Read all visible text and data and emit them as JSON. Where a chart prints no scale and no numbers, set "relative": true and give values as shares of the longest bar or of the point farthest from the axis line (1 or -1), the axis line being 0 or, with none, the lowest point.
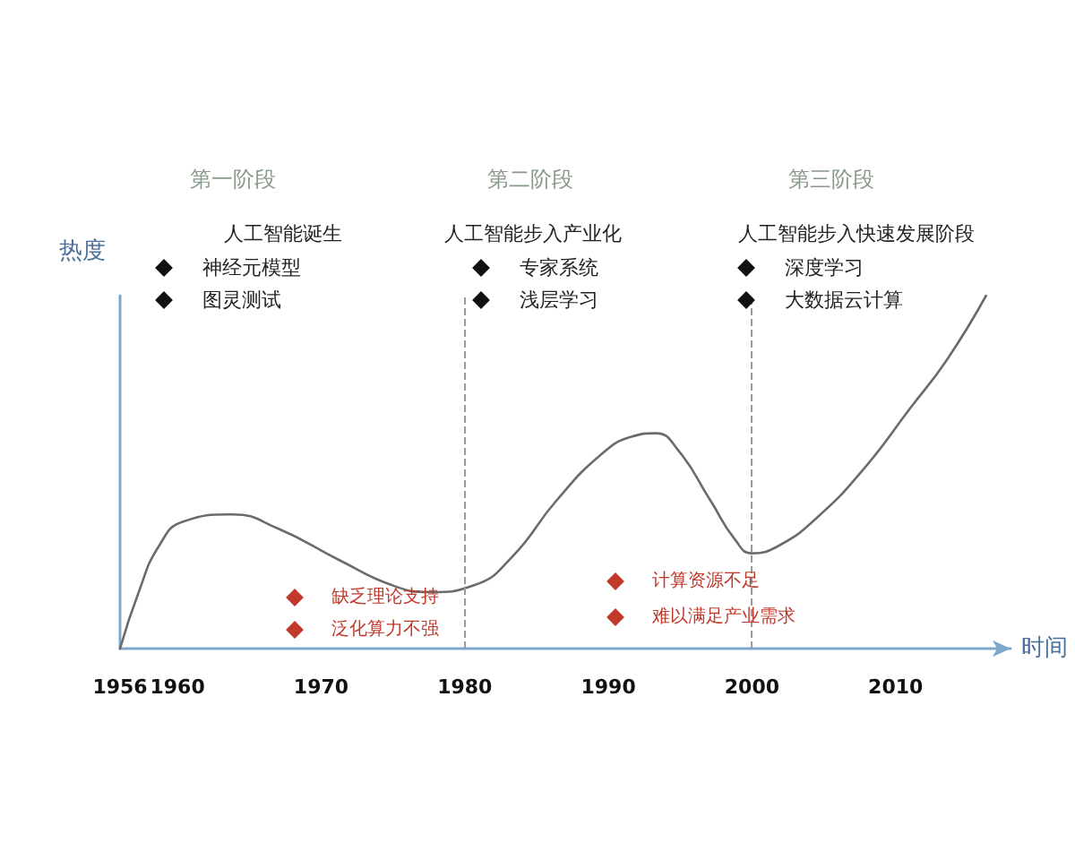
{
  "chart_data": {
    "type": "line",
    "relative": true,
    "xlabel": "时间",
    "ylabel": "热度",
    "x": [
      1956,
      1957.3,
      1958.7,
      1960.4,
      1963.8,
      1967,
      1971.3,
      1974.9,
      1977.6,
      1980.7,
      1983.3,
      1986.4,
      1989.5,
      1991.6,
      1993.3,
      1994.9,
      1997.1,
      1998.8,
      2000,
      2001.8,
      2004.5,
      2007.8,
      2011,
      2013.6,
      2016.3
    ],
    "series": [
      {
        "color": "#6b6b6b",
        "values": [
          0,
          0.16,
          0.29,
          0.36,
          0.38,
          0.34,
          0.25,
          0.18,
          0.16,
          0.18,
          0.26,
          0.42,
          0.55,
          0.6,
          0.61,
          0.56,
          0.42,
          0.31,
          0.27,
          0.29,
          0.37,
          0.51,
          0.68,
          0.82,
          1
        ]
      }
    ],
    "xlim": [
      1956,
      2018
    ],
    "xticks": [
      1956,
      1960,
      1970,
      1980,
      1990,
      2000,
      2010
    ],
    "ref_lines": [
      {
        "axis": "x",
        "value": 1980,
        "color": "#9a9a9a",
        "line_style": "dashed"
      },
      {
        "axis": "x",
        "value": 2000,
        "color": "#9a9a9a",
        "line_style": "dashed"
      }
    ],
    "annotations": [
      "第一阶段",
      "人工智能诞生",
      "神经元模型",
      "图灵测试",
      "第二阶段",
      "人工智能步入产业化",
      "专家系统",
      "浅层学习",
      "第三阶段",
      "人工智能步入快速发展阶段",
      "深度学习",
      "大数据云计算",
      "缺乏理论支持",
      "泛化算力不强",
      "计算资源不足",
      "难以满足产业需求"
    ],
    "grid": false,
    "marker": "none",
    "line_style": "solid"
  }
}
